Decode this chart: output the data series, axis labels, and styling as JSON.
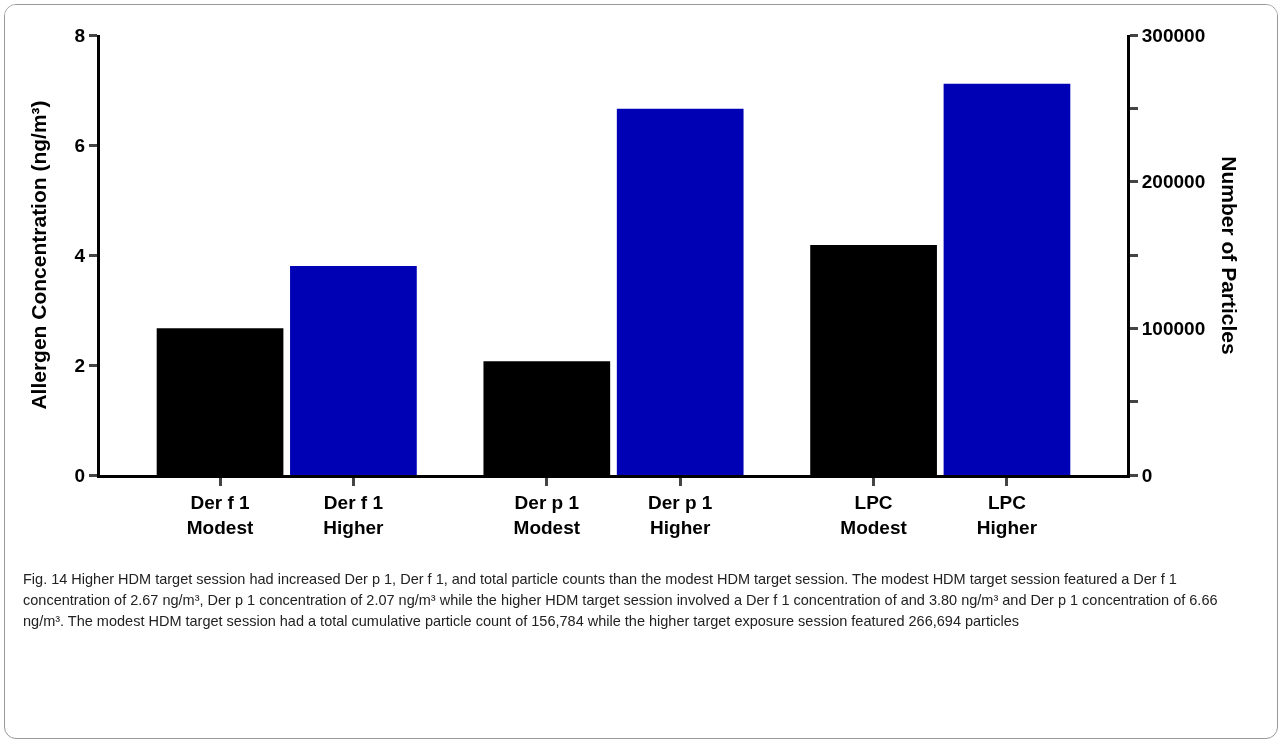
{
  "chart_data": {
    "type": "bar",
    "categories": [
      "Der f 1\nModest",
      "Der f 1\nHigher",
      "Der p 1\nModest",
      "Der p 1\nHigher",
      "LPC\nModest",
      "LPC\nHigher"
    ],
    "series": [
      {
        "colors": [
          "#000000",
          "#0000b4",
          "#000000",
          "#0000b4",
          null,
          null
        ],
        "values": [
          2.67,
          3.8,
          2.07,
          6.66,
          null,
          null
        ]
      },
      {
        "colors": [
          null,
          null,
          null,
          null,
          "#000000",
          "#0000b4"
        ],
        "values": [
          null,
          null,
          null,
          null,
          156784,
          266694
        ],
        "axis": "y2"
      }
    ],
    "ylabel": "Allergen Concentration (ng/m³)",
    "y2label": "Number of Particles",
    "ylim": [
      0,
      8
    ],
    "yticks": [
      0,
      2,
      4,
      6,
      8
    ],
    "y2lim": [
      0,
      300000
    ],
    "y2ticks": [
      0,
      {
        "value": 50000,
        "label": null
      },
      100000,
      {
        "value": 150000,
        "label": null
      },
      200000,
      {
        "value": 250000,
        "label": null
      },
      300000
    ],
    "grid": false,
    "annotations": [
      "Fig. 14  Higher HDM target session had increased Der p 1, Der f 1, and total particle counts than the modest HDM target session. The modest HDM target session featured a Der f 1 concentration of 2.67 ng/m³, Der p 1 concentration of 2.07 ng/m³ while the higher HDM target session involved a Der f 1 concentration of and 3.80 ng/m³ and Der p 1 concentration of 6.66 ng/m³. The modest HDM target session had a total cumulative particle count of 156,784 while the higher target exposure session featured 266,694 particles"
    ]
  }
}
